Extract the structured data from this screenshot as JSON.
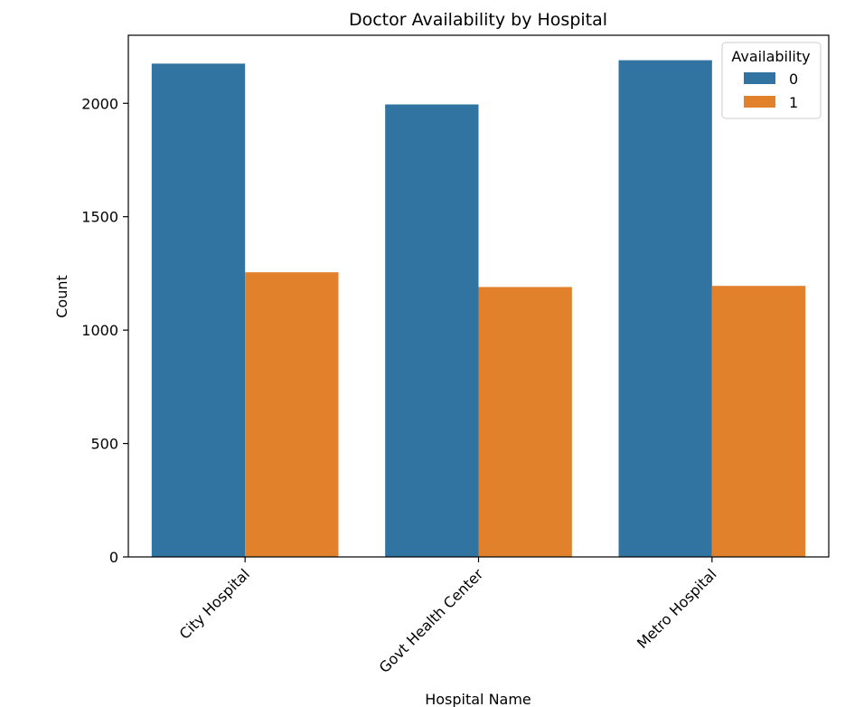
{
  "chart_data": {
    "type": "bar",
    "title": "Doctor Availability by Hospital",
    "xlabel": "Hospital Name",
    "ylabel": "Count",
    "categories": [
      "City Hospital",
      "Govt Health Center",
      "Metro Hospital"
    ],
    "series": [
      {
        "name": "0",
        "values": [
          2175,
          1995,
          2190
        ]
      },
      {
        "name": "1",
        "values": [
          1255,
          1190,
          1195
        ]
      }
    ],
    "yticks": [
      0,
      500,
      1000,
      1500,
      2000
    ],
    "ylim": [
      0,
      2300
    ],
    "legend": {
      "title": "Availability",
      "position": "top-right"
    },
    "grid": false,
    "colors": [
      "#3274a1",
      "#e1812c"
    ]
  }
}
